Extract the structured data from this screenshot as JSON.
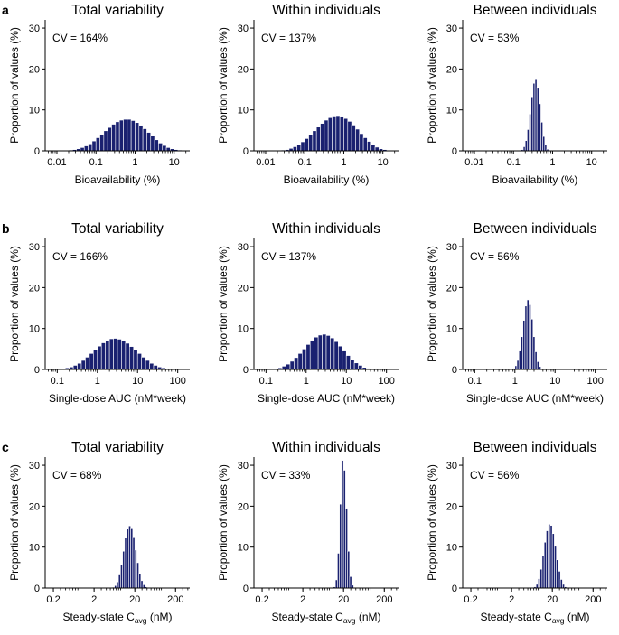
{
  "colors": {
    "bar": "#1a2170",
    "axis": "#000000"
  },
  "chart_data": [
    {
      "panel_label": "a",
      "type": "bar",
      "title": "Total variability",
      "cv_text": "CV = 164%",
      "xscale": "log",
      "xlim_exp": [
        -2.3,
        1.4
      ],
      "xticks": [
        {
          "v": 0.01,
          "label": "0.01"
        },
        {
          "v": 0.1,
          "label": "0.1"
        },
        {
          "v": 1,
          "label": "1"
        },
        {
          "v": 10,
          "label": "10"
        }
      ],
      "xlabel": "Bioavailability (%)",
      "xlabel_sub": "",
      "xlabel_suffix": "",
      "ylabel": "Proportion of values (%)",
      "ylim": [
        0,
        32
      ],
      "yticks": [
        0,
        10,
        20,
        30
      ],
      "bar_exp_start": -1.8,
      "bar_exp_width": 0.1,
      "values": [
        0.1,
        0.2,
        0.3,
        0.5,
        0.8,
        1.2,
        1.7,
        2.4,
        3.2,
        4.0,
        4.9,
        5.7,
        6.5,
        7.1,
        7.5,
        7.7,
        7.7,
        7.4,
        6.9,
        6.2,
        5.4,
        4.5,
        3.6,
        2.7,
        1.9,
        1.3,
        0.8,
        0.5,
        0.3,
        0.2,
        0.1,
        0.1,
        0.05
      ]
    },
    {
      "panel_label": "",
      "type": "bar",
      "title": "Within individuals",
      "cv_text": "CV = 137%",
      "xscale": "log",
      "xlim_exp": [
        -2.3,
        1.4
      ],
      "xticks": [
        {
          "v": 0.01,
          "label": "0.01"
        },
        {
          "v": 0.1,
          "label": "0.1"
        },
        {
          "v": 1,
          "label": "1"
        },
        {
          "v": 10,
          "label": "10"
        }
      ],
      "xlabel": "Bioavailability (%)",
      "xlabel_sub": "",
      "xlabel_suffix": "",
      "ylabel": "Proportion of values (%)",
      "ylim": [
        0,
        32
      ],
      "yticks": [
        0,
        10,
        20,
        30
      ],
      "bar_exp_start": -1.7,
      "bar_exp_width": 0.1,
      "values": [
        0.1,
        0.2,
        0.3,
        0.6,
        1.0,
        1.5,
        2.2,
        3.0,
        3.9,
        4.9,
        5.8,
        6.7,
        7.5,
        8.1,
        8.5,
        8.6,
        8.4,
        7.9,
        7.2,
        6.3,
        5.3,
        4.2,
        3.2,
        2.3,
        1.5,
        0.9,
        0.5,
        0.3,
        0.1,
        0.05
      ]
    },
    {
      "panel_label": "",
      "type": "bar",
      "title": "Between individuals",
      "cv_text": "CV = 53%",
      "xscale": "log",
      "xlim_exp": [
        -2.3,
        1.4
      ],
      "xticks": [
        {
          "v": 0.01,
          "label": "0.01"
        },
        {
          "v": 0.1,
          "label": "0.1"
        },
        {
          "v": 1,
          "label": "1"
        },
        {
          "v": 10,
          "label": "10"
        }
      ],
      "xlabel": "Bioavailability (%)",
      "xlabel_sub": "",
      "xlabel_suffix": "",
      "ylabel": "Proportion of values (%)",
      "ylim": [
        0,
        32
      ],
      "yticks": [
        0,
        10,
        20,
        30
      ],
      "bar_exp_start": -0.8,
      "bar_exp_width": 0.05,
      "values": [
        0.3,
        1.0,
        2.5,
        5.2,
        9.0,
        13.2,
        16.5,
        17.4,
        15.5,
        11.5,
        7.0,
        3.5,
        1.4,
        0.4,
        0.1
      ]
    },
    {
      "panel_label": "b",
      "type": "bar",
      "title": "Total variability",
      "cv_text": "CV = 166%",
      "xscale": "log",
      "xlim_exp": [
        -1.3,
        2.3
      ],
      "xticks": [
        {
          "v": 0.1,
          "label": "0.1"
        },
        {
          "v": 1,
          "label": "1"
        },
        {
          "v": 10,
          "label": "10"
        },
        {
          "v": 100,
          "label": "100"
        }
      ],
      "xlabel": "Single-dose AUC (nM*week)",
      "xlabel_sub": "",
      "xlabel_suffix": "",
      "ylabel": "Proportion of values (%)",
      "ylim": [
        0,
        32
      ],
      "yticks": [
        0,
        10,
        20,
        30
      ],
      "bar_exp_start": -1.0,
      "bar_exp_width": 0.1,
      "values": [
        0.1,
        0.2,
        0.4,
        0.6,
        1.0,
        1.5,
        2.2,
        3.0,
        3.9,
        4.8,
        5.7,
        6.5,
        7.1,
        7.5,
        7.6,
        7.4,
        7.0,
        6.4,
        5.6,
        4.8,
        3.9,
        3.0,
        2.2,
        1.5,
        1.0,
        0.6,
        0.4,
        0.2,
        0.1,
        0.05
      ]
    },
    {
      "panel_label": "",
      "type": "bar",
      "title": "Within individuals",
      "cv_text": "CV = 137%",
      "xscale": "log",
      "xlim_exp": [
        -1.3,
        2.3
      ],
      "xticks": [
        {
          "v": 0.1,
          "label": "0.1"
        },
        {
          "v": 1,
          "label": "1"
        },
        {
          "v": 10,
          "label": "10"
        },
        {
          "v": 100,
          "label": "100"
        }
      ],
      "xlabel": "Single-dose AUC (nM*week)",
      "xlabel_sub": "",
      "xlabel_suffix": "",
      "ylabel": "Proportion of values (%)",
      "ylim": [
        0,
        32
      ],
      "yticks": [
        0,
        10,
        20,
        30
      ],
      "bar_exp_start": -0.9,
      "bar_exp_width": 0.1,
      "values": [
        0.1,
        0.2,
        0.4,
        0.8,
        1.3,
        2.0,
        2.9,
        3.9,
        5.0,
        6.1,
        7.1,
        7.9,
        8.4,
        8.6,
        8.3,
        7.7,
        6.8,
        5.7,
        4.5,
        3.4,
        2.4,
        1.6,
        1.0,
        0.5,
        0.3,
        0.1,
        0.05
      ]
    },
    {
      "panel_label": "",
      "type": "bar",
      "title": "Between individuals",
      "cv_text": "CV = 56%",
      "xscale": "log",
      "xlim_exp": [
        -1.3,
        2.3
      ],
      "xticks": [
        {
          "v": 0.1,
          "label": "0.1"
        },
        {
          "v": 1,
          "label": "1"
        },
        {
          "v": 10,
          "label": "10"
        },
        {
          "v": 100,
          "label": "100"
        }
      ],
      "xlabel": "Single-dose AUC (nM*week)",
      "xlabel_sub": "",
      "xlabel_suffix": "",
      "ylabel": "Proportion of values (%)",
      "ylim": [
        0,
        32
      ],
      "yticks": [
        0,
        10,
        20,
        30
      ],
      "bar_exp_start": -0.05,
      "bar_exp_width": 0.05,
      "values": [
        0.3,
        0.9,
        2.2,
        4.5,
        8.0,
        12.0,
        15.5,
        17.0,
        15.8,
        12.3,
        8.0,
        4.3,
        1.9,
        0.7,
        0.2
      ]
    },
    {
      "panel_label": "c",
      "type": "bar",
      "title": "Total variability",
      "cv_text": "CV = 68%",
      "xscale": "log",
      "xlim_exp": [
        -0.9,
        2.65
      ],
      "xticks": [
        {
          "v": 0.2,
          "label": "0.2"
        },
        {
          "v": 2,
          "label": "2"
        },
        {
          "v": 20,
          "label": "20"
        },
        {
          "v": 200,
          "label": "200"
        }
      ],
      "xlabel": "Steady-state C",
      "xlabel_sub": "avg",
      "xlabel_suffix": " (nM)",
      "ylabel": "Proportion of values (%)",
      "ylim": [
        0,
        32
      ],
      "yticks": [
        0,
        10,
        20,
        30
      ],
      "bar_exp_start": 0.75,
      "bar_exp_width": 0.05,
      "values": [
        0.2,
        0.6,
        1.5,
        3.2,
        5.8,
        9.0,
        12.2,
        14.4,
        15.2,
        14.5,
        12.3,
        9.3,
        6.2,
        3.6,
        1.8,
        0.8,
        0.3,
        0.1
      ]
    },
    {
      "panel_label": "",
      "type": "bar",
      "title": "Within individuals",
      "cv_text": "CV = 33%",
      "xscale": "log",
      "xlim_exp": [
        -0.9,
        2.65
      ],
      "xticks": [
        {
          "v": 0.2,
          "label": "0.2"
        },
        {
          "v": 2,
          "label": "2"
        },
        {
          "v": 20,
          "label": "20"
        },
        {
          "v": 200,
          "label": "200"
        }
      ],
      "xlabel": "Steady-state C",
      "xlabel_sub": "avg",
      "xlabel_suffix": " (nM)",
      "ylabel": "Proportion of values (%)",
      "ylim": [
        0,
        32
      ],
      "yticks": [
        0,
        10,
        20,
        30
      ],
      "bar_exp_start": 1.05,
      "bar_exp_width": 0.05,
      "values": [
        0.3,
        2.0,
        8.5,
        20.5,
        31.2,
        28.8,
        19.5,
        9.0,
        2.8,
        0.7,
        0.1
      ]
    },
    {
      "panel_label": "",
      "type": "bar",
      "title": "Between individuals",
      "cv_text": "CV = 56%",
      "xscale": "log",
      "xlim_exp": [
        -0.9,
        2.65
      ],
      "xticks": [
        {
          "v": 0.2,
          "label": "0.2"
        },
        {
          "v": 2,
          "label": "2"
        },
        {
          "v": 20,
          "label": "20"
        },
        {
          "v": 200,
          "label": "200"
        }
      ],
      "xlabel": "Steady-state C",
      "xlabel_sub": "avg",
      "xlabel_suffix": " (nM)",
      "ylabel": "Proportion of values (%)",
      "ylim": [
        0,
        32
      ],
      "yticks": [
        0,
        10,
        20,
        30
      ],
      "bar_exp_start": 0.85,
      "bar_exp_width": 0.05,
      "values": [
        0.3,
        0.9,
        2.3,
        4.6,
        7.8,
        11.2,
        14.0,
        15.6,
        15.3,
        13.3,
        10.2,
        6.9,
        4.1,
        2.1,
        0.9,
        0.3,
        0.1
      ]
    }
  ]
}
